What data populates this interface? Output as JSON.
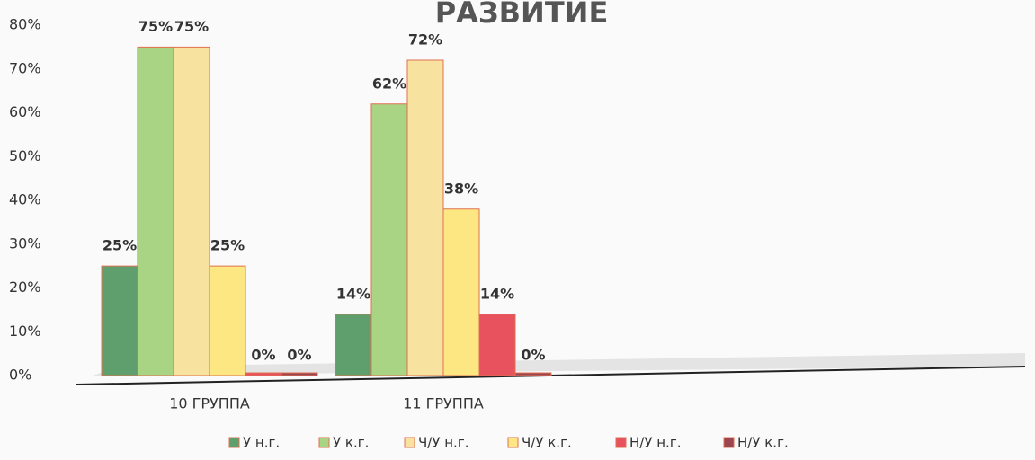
{
  "chart_data": {
    "type": "bar",
    "title": "РАЗВИТИЕ",
    "categories": [
      "10 ГРУППА",
      "11 ГРУППА"
    ],
    "series": [
      {
        "name": "У н.г.",
        "color": "#5f9f6e",
        "values": [
          25,
          14
        ],
        "value_labels": [
          "25%",
          "14%"
        ]
      },
      {
        "name": "У к.г.",
        "color": "#a9d484",
        "values": [
          75,
          62
        ],
        "value_labels": [
          "75%",
          "62%"
        ]
      },
      {
        "name": "Ч/У н.г.",
        "color": "#f7e2a0",
        "values": [
          75,
          72
        ],
        "value_labels": [
          "75%",
          "72%"
        ]
      },
      {
        "name": "Ч/У к.г.",
        "color": "#fde783",
        "values": [
          25,
          38
        ],
        "value_labels": [
          "25%",
          "38%"
        ]
      },
      {
        "name": "Н/У н.г.",
        "color": "#e8525f",
        "values": [
          0,
          14
        ],
        "value_labels": [
          "0%",
          "14%"
        ]
      },
      {
        "name": "Н/У к.г.",
        "color": "#9c4650",
        "values": [
          0,
          0
        ],
        "value_labels": [
          "0%",
          "0%"
        ]
      }
    ],
    "ylim": [
      0,
      80
    ],
    "yticks": [
      {
        "value": 0,
        "label": "0%"
      },
      {
        "value": 10,
        "label": "10%"
      },
      {
        "value": 20,
        "label": "20%"
      },
      {
        "value": 30,
        "label": "30%"
      },
      {
        "value": 40,
        "label": "40%"
      },
      {
        "value": 50,
        "label": "50%"
      },
      {
        "value": 60,
        "label": "60%"
      },
      {
        "value": 70,
        "label": "70%"
      },
      {
        "value": 80,
        "label": "80%"
      }
    ]
  }
}
